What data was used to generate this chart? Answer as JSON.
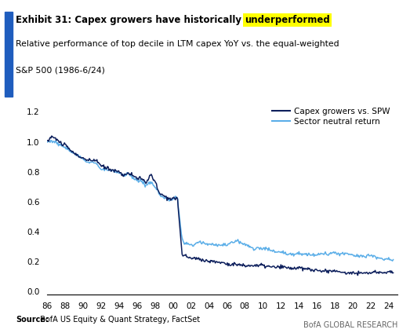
{
  "title_part1": "Exhibit 31: Capex growers have historically ",
  "title_highlight": "underperformed",
  "subtitle_line1": "Relative performance of top decile in LTM capex YoY vs. the equal-weighted",
  "subtitle_line2": "S&P 500 (1986-6/24)",
  "source_bold": "Source:",
  "source_rest": " BofA US Equity & Quant Strategy, FactSet",
  "branding": "BofA GLOBAL RESEARCH",
  "legend": [
    "Capex growers vs. SPW",
    "Sector neutral return"
  ],
  "color_dark": "#0d1f5c",
  "color_light": "#5baee8",
  "yticks": [
    0.0,
    0.2,
    0.4,
    0.6,
    0.8,
    1.0,
    1.2
  ],
  "xtick_labels": [
    "86",
    "88",
    "90",
    "92",
    "94",
    "96",
    "98",
    "00",
    "02",
    "04",
    "06",
    "08",
    "10",
    "12",
    "14",
    "16",
    "18",
    "20",
    "22",
    "24"
  ],
  "ylim": [
    -0.02,
    1.28
  ],
  "background_color": "#ffffff",
  "blue_bar_color": "#1f5dbe"
}
